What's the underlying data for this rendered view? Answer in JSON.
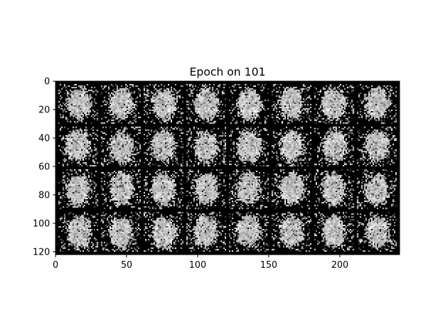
{
  "chart_data": {
    "type": "heatmap",
    "title": "Epoch on 101",
    "xlabel": "",
    "ylabel": "",
    "xlim": [
      0,
      242
    ],
    "ylim": [
      122,
      0
    ],
    "xticks": [
      0,
      50,
      100,
      150,
      200
    ],
    "yticks": [
      0,
      20,
      40,
      60,
      80,
      100,
      120
    ],
    "grid": false,
    "colormap": "gray",
    "grid_rows": 4,
    "grid_cols": 8,
    "tile_size": 28,
    "tile_padding": 2
  },
  "colors": {
    "background": "#ffffff",
    "image_background": "#000000",
    "axis": "#000000"
  }
}
